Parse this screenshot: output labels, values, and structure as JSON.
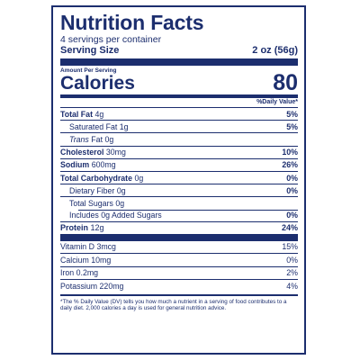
{
  "label": {
    "title": "Nutrition Facts",
    "servings_per_container": "4 servings per container",
    "serving_size_label": "Serving Size",
    "serving_size_value": "2 oz (56g)",
    "amount_per_serving": "Amount Per Serving",
    "calories_label": "Calories",
    "calories_value": "80",
    "dv_header": "%Daily Value*",
    "nutrients": [
      {
        "name": "Total Fat",
        "amount": "4g",
        "dv": "5%"
      },
      {
        "name": "Saturated Fat",
        "amount": "1g",
        "dv": "5%"
      },
      {
        "name": "Trans",
        "name_rest": "Fat",
        "amount": "0g",
        "dv": ""
      },
      {
        "name": "Cholesterol",
        "amount": "30mg",
        "dv": "10%"
      },
      {
        "name": "Sodium",
        "amount": "600mg",
        "dv": "26%"
      },
      {
        "name": "Total Carbohydrate",
        "amount": "0g",
        "dv": "0%"
      },
      {
        "name": "Dietary Fiber",
        "amount": "0g",
        "dv": "0%"
      },
      {
        "name": "Total Sugars",
        "amount": "0g",
        "dv": ""
      },
      {
        "name": "Includes 0g Added Sugars",
        "amount": "",
        "dv": "0%"
      },
      {
        "name": "Protein",
        "amount": "12g",
        "dv": "24%"
      }
    ],
    "vitamins": [
      {
        "name": "Vitamin D",
        "amount": "3mcg",
        "dv": "15%"
      },
      {
        "name": "Calcium",
        "amount": "10mg",
        "dv": "0%"
      },
      {
        "name": "Iron",
        "amount": "0.2mg",
        "dv": "2%"
      },
      {
        "name": "Potassium",
        "amount": "220mg",
        "dv": "4%"
      }
    ],
    "footnote": "*The % Daily Value (DV) tells you how much a nutrient in a serving of food contributes to a daily diet. 2,000 calories a day is used for general nutrition advice."
  }
}
